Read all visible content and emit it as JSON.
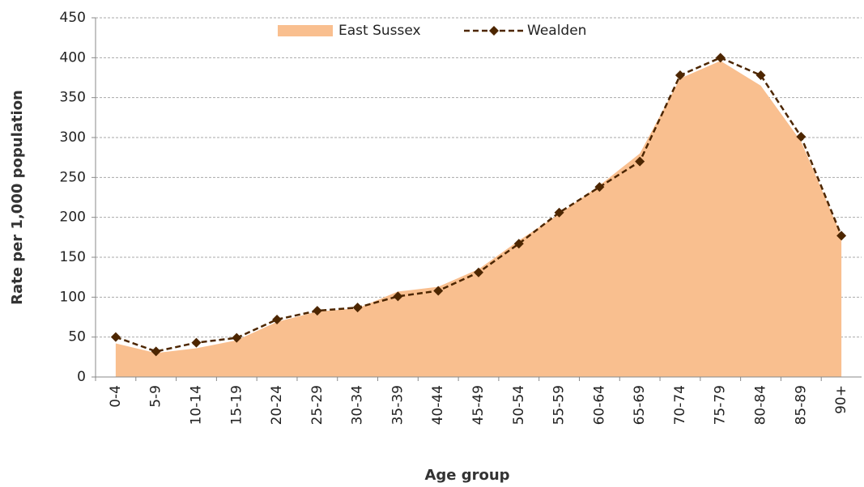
{
  "chart_data": {
    "type": "area-line",
    "x_label": "Age group",
    "y_label": "Rate per 1,000 population",
    "categories": [
      "0-4",
      "5-9",
      "10-14",
      "15-19",
      "20-24",
      "25-29",
      "30-34",
      "35-39",
      "40-44",
      "45-49",
      "50-54",
      "55-59",
      "60-64",
      "65-69",
      "70-74",
      "75-79",
      "80-84",
      "85-89",
      "90+"
    ],
    "series": [
      {
        "name": "East Sussex",
        "kind": "area",
        "color": "#f9bf8f",
        "values": [
          42,
          30,
          36,
          46,
          69,
          82,
          86,
          107,
          113,
          135,
          171,
          204,
          240,
          280,
          374,
          396,
          365,
          295,
          177
        ]
      },
      {
        "name": "Wealden",
        "kind": "line",
        "color": "#4d2600",
        "values": [
          50,
          32,
          43,
          49,
          72,
          83,
          87,
          101,
          108,
          131,
          167,
          206,
          238,
          270,
          378,
          400,
          378,
          301,
          177
        ]
      }
    ],
    "ylim": [
      0,
      450
    ],
    "yticks": [
      0,
      50,
      100,
      150,
      200,
      250,
      300,
      350,
      400,
      450
    ],
    "grid": true,
    "legend": "top"
  }
}
